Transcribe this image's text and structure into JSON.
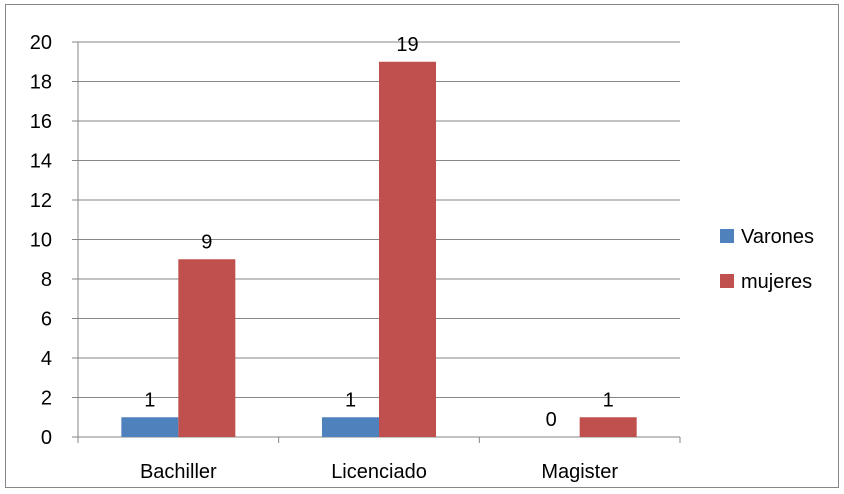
{
  "chart_data": {
    "type": "bar",
    "categories": [
      "Bachiller",
      "Licenciado",
      "Magister"
    ],
    "series": [
      {
        "name": "Varones",
        "values": [
          1,
          1,
          0
        ],
        "color": "#4f81bd"
      },
      {
        "name": "mujeres",
        "values": [
          9,
          19,
          1
        ],
        "color": "#c0504d"
      }
    ],
    "ylim": [
      0,
      20
    ],
    "yticks": [
      0,
      2,
      4,
      6,
      8,
      10,
      12,
      14,
      16,
      18,
      20
    ],
    "grid": true,
    "legend_position": "right",
    "data_labels": true
  }
}
